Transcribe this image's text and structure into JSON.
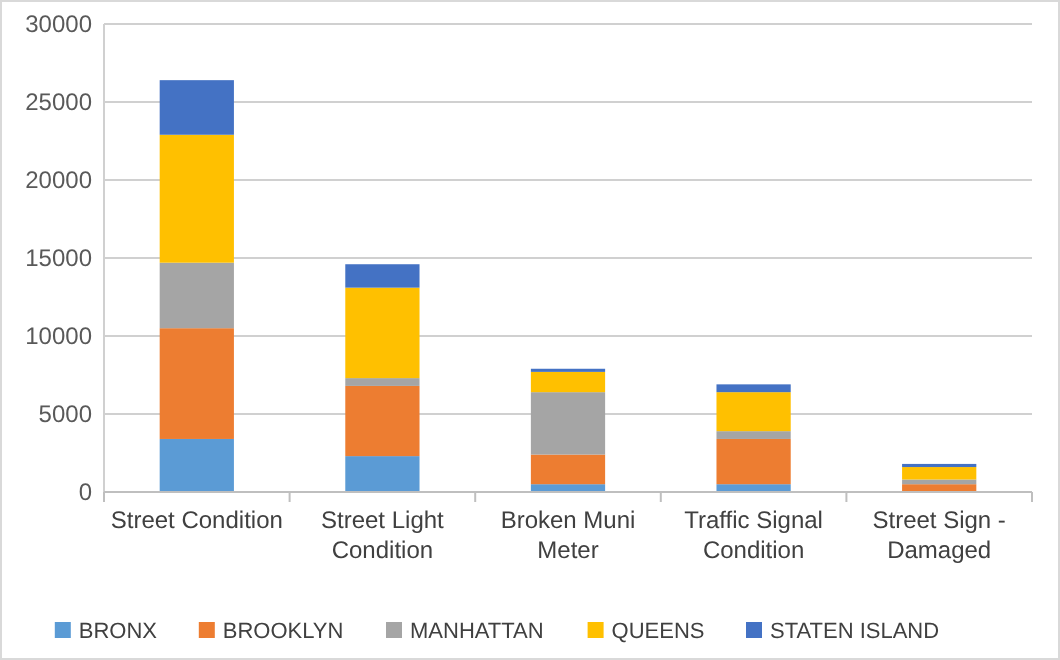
{
  "chart_data": {
    "type": "bar",
    "stacked": true,
    "categories": [
      "Street Condition",
      "Street Light Condition",
      "Broken Muni Meter",
      "Traffic Signal Condition",
      "Street Sign - Damaged"
    ],
    "series": [
      {
        "name": "BRONX",
        "color": "#5b9bd5",
        "values": [
          3400,
          2300,
          500,
          500,
          null
        ]
      },
      {
        "name": "BROOKLYN",
        "color": "#ed7d31",
        "values": [
          7100,
          4500,
          1900,
          2900,
          500
        ]
      },
      {
        "name": "MANHATTAN",
        "color": "#a5a5a5",
        "values": [
          4200,
          500,
          4000,
          500,
          300
        ]
      },
      {
        "name": "QUEENS",
        "color": "#ffc000",
        "values": [
          8200,
          5800,
          1300,
          2500,
          800
        ]
      },
      {
        "name": "STATEN ISLAND",
        "color": "#4472c4",
        "values": [
          3500,
          1500,
          200,
          500,
          200
        ]
      }
    ],
    "ylim": [
      0,
      30000
    ],
    "yticks": [
      0,
      5000,
      10000,
      15000,
      20000,
      25000,
      30000
    ],
    "grid": "y",
    "legend": "bottom"
  }
}
